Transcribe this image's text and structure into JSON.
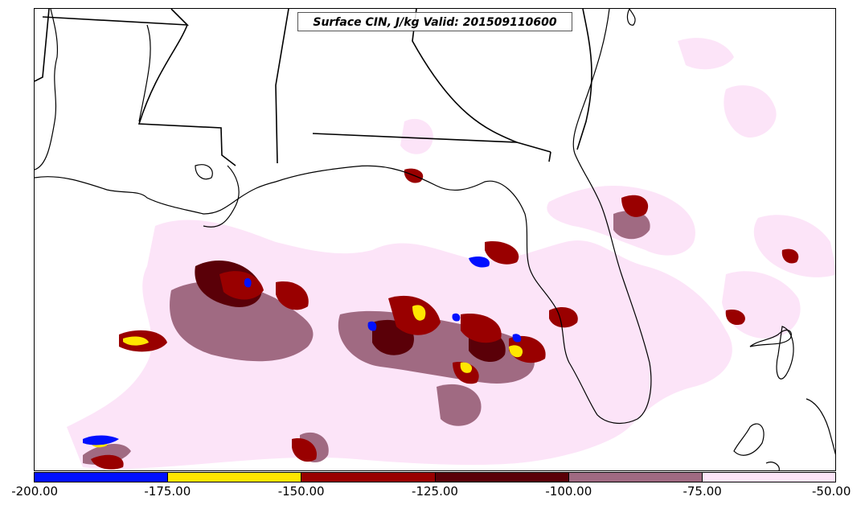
{
  "map": {
    "title": "Surface CIN, J/kg Valid: 201509110600",
    "field": "Surface CIN",
    "units": "J/kg",
    "valid_time": "201509110600"
  },
  "colorbar": {
    "levels": [
      {
        "min": -200,
        "max": -175,
        "color": "#0010ff"
      },
      {
        "min": -175,
        "max": -150,
        "color": "#ffe600"
      },
      {
        "min": -150,
        "max": -125,
        "color": "#990000"
      },
      {
        "min": -125,
        "max": -100,
        "color": "#5a0008"
      },
      {
        "min": -100,
        "max": -75,
        "color": "#a06a82"
      },
      {
        "min": -75,
        "max": -50,
        "color": "#fce4f8"
      }
    ],
    "tick_labels": [
      "-200.00",
      "-175.00",
      "-150.00",
      "-125.00",
      "-100.00",
      "-75.00",
      "-50.00"
    ]
  },
  "colors": {
    "coastline": "#000000",
    "state_border": "#000000",
    "background": "#ffffff"
  }
}
